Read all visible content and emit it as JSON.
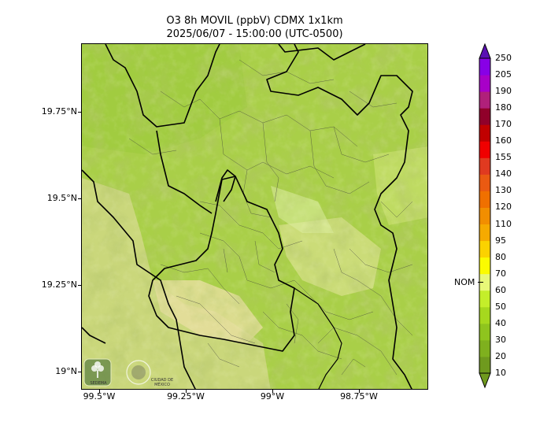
{
  "title": {
    "line1": "O3 8h MOVIL (ppbV) CDMX 1x1km",
    "line2": "2025/06/07 - 15:00:00 (UTC-0500)"
  },
  "axes": {
    "lat_labels": [
      "19.75°N",
      "19.5°N",
      "19.25°N",
      "19°N"
    ],
    "lon_labels": [
      "99.5°W",
      "99.25°W",
      "99°W",
      "98.75°W"
    ]
  },
  "colorbar": {
    "levels": [
      "10",
      "20",
      "30",
      "40",
      "50",
      "60",
      "70",
      "80",
      "95",
      "110",
      "120",
      "130",
      "140",
      "155",
      "160",
      "170",
      "180",
      "190",
      "205",
      "250"
    ],
    "colors": [
      "#6f9a1e",
      "#7fb01e",
      "#8fc41e",
      "#a6d81e",
      "#c4ee2a",
      "#e8f878",
      "#fbfb00",
      "#fbd200",
      "#f6aa00",
      "#f28e00",
      "#f07000",
      "#ea5a12",
      "#e03a20",
      "#f00000",
      "#c00000",
      "#90002a",
      "#b0207a",
      "#a800c8",
      "#8800e6",
      "#5a0fb4"
    ],
    "extend_low_color": "#6f9a1e",
    "extend_high_color": "#5a0fb4",
    "nom_label": "NOM",
    "nom_value": 70
  },
  "logos": {
    "sedema": "SEDEMA",
    "cdmx": "CIUDAD DE MÉXICO"
  },
  "map_colors": {
    "base": "#a9cf48",
    "dark": "#8cbf2f",
    "light": "#d9e690",
    "tan": "#e7dfa0"
  },
  "icons": [
    "sedema-logo-icon",
    "cdmx-seal-icon"
  ]
}
